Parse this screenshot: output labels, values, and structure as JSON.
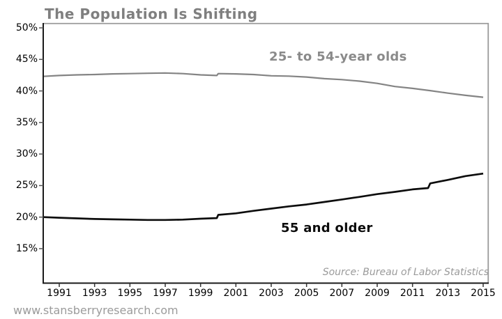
{
  "title": "The Population Is Shifting",
  "footer": {
    "url_text": "www.stansberryresearch.com"
  },
  "chart_data": {
    "type": "line",
    "title": "The Population Is Shifting",
    "source_note": "Source: Bureau of Labor Statistics",
    "grid": false,
    "legend_position": "inline-labels",
    "x_axis": {
      "tick_years": [
        1991,
        1993,
        1995,
        1997,
        1999,
        2001,
        2003,
        2005,
        2007,
        2009,
        2011,
        2013,
        2015
      ],
      "range": [
        1990,
        2015
      ]
    },
    "y_axis": {
      "tick_labels": [
        "50%",
        "45%",
        "40%",
        "35%",
        "30%",
        "25%",
        "20%",
        "15%"
      ],
      "tick_values": [
        50,
        45,
        40,
        35,
        30,
        25,
        20,
        15
      ],
      "unit": "percent"
    },
    "series": [
      {
        "name": "25- to 54-year olds",
        "color": "#848484",
        "stroke_width": 2.2,
        "points": [
          [
            1990.08,
            42.3
          ],
          [
            1991,
            42.45
          ],
          [
            1992,
            42.55
          ],
          [
            1993,
            42.6
          ],
          [
            1994,
            42.7
          ],
          [
            1995,
            42.75
          ],
          [
            1996,
            42.8
          ],
          [
            1997,
            42.85
          ],
          [
            1998,
            42.75
          ],
          [
            1999,
            42.55
          ],
          [
            1999.92,
            42.45
          ],
          [
            2000.0,
            42.75
          ],
          [
            2001,
            42.7
          ],
          [
            2002,
            42.6
          ],
          [
            2003,
            42.4
          ],
          [
            2004,
            42.35
          ],
          [
            2005,
            42.2
          ],
          [
            2006,
            41.95
          ],
          [
            2007,
            41.8
          ],
          [
            2008,
            41.55
          ],
          [
            2009,
            41.2
          ],
          [
            2010,
            40.7
          ],
          [
            2011,
            40.4
          ],
          [
            2012,
            40.05
          ],
          [
            2013,
            39.65
          ],
          [
            2014,
            39.3
          ],
          [
            2015,
            39.0
          ]
        ]
      },
      {
        "name": "55 and older",
        "color": "#0d0d0d",
        "stroke_width": 2.7,
        "points": [
          [
            1990.08,
            20.0
          ],
          [
            1991,
            19.9
          ],
          [
            1992,
            19.8
          ],
          [
            1993,
            19.7
          ],
          [
            1994,
            19.65
          ],
          [
            1995,
            19.6
          ],
          [
            1996,
            19.55
          ],
          [
            1997,
            19.55
          ],
          [
            1998,
            19.6
          ],
          [
            1999,
            19.75
          ],
          [
            1999.92,
            19.85
          ],
          [
            2000.0,
            20.35
          ],
          [
            2001,
            20.6
          ],
          [
            2002,
            21.0
          ],
          [
            2003,
            21.35
          ],
          [
            2004,
            21.7
          ],
          [
            2005,
            22.0
          ],
          [
            2006,
            22.4
          ],
          [
            2007,
            22.8
          ],
          [
            2008,
            23.2
          ],
          [
            2009,
            23.65
          ],
          [
            2010,
            24.0
          ],
          [
            2011,
            24.4
          ],
          [
            2011.88,
            24.6
          ],
          [
            2012.0,
            25.35
          ],
          [
            2013,
            25.9
          ],
          [
            2014,
            26.5
          ],
          [
            2015,
            26.9
          ]
        ]
      }
    ],
    "colors": {
      "axis_dark": "#1a1a1a",
      "axis_light": "#9a9a9a",
      "title_gray": "#7f7f7f"
    }
  }
}
